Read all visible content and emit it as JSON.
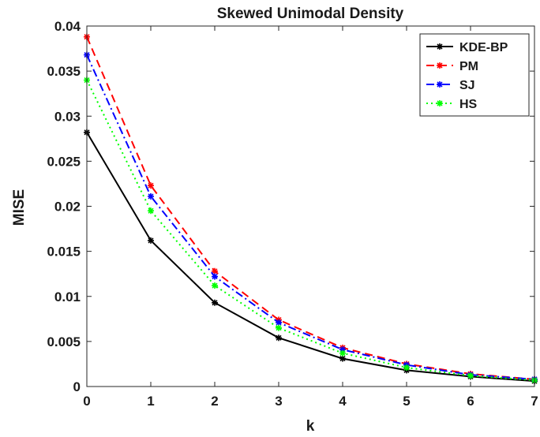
{
  "chart_data": {
    "type": "line",
    "title": "Skewed Unimodal Density",
    "xlabel": "k",
    "ylabel": "MISE",
    "xlim": [
      0,
      7
    ],
    "ylim": [
      0,
      0.04
    ],
    "x": [
      0,
      1,
      2,
      3,
      4,
      5,
      6,
      7
    ],
    "x_ticks": [
      "0",
      "1",
      "2",
      "3",
      "4",
      "5",
      "6",
      "7"
    ],
    "y_ticks": [
      {
        "value": 0,
        "label": "0"
      },
      {
        "value": 0.005,
        "label": "0.005"
      },
      {
        "value": 0.01,
        "label": "0.01"
      },
      {
        "value": 0.015,
        "label": "0.015"
      },
      {
        "value": 0.02,
        "label": "0.02"
      },
      {
        "value": 0.025,
        "label": "0.025"
      },
      {
        "value": 0.03,
        "label": "0.03"
      },
      {
        "value": 0.035,
        "label": "0.035"
      },
      {
        "value": 0.04,
        "label": "0.04"
      }
    ],
    "grid": false,
    "legend_position": "top-right",
    "series": [
      {
        "name": "KDE-BP",
        "color": "#000000",
        "dash": "solid",
        "values": [
          0.0282,
          0.0162,
          0.0093,
          0.0054,
          0.0031,
          0.0018,
          0.0011,
          0.0006
        ]
      },
      {
        "name": "PM",
        "color": "#ff0000",
        "dash": "dashed",
        "values": [
          0.0388,
          0.0223,
          0.0128,
          0.0074,
          0.0043,
          0.0025,
          0.0014,
          0.0008
        ]
      },
      {
        "name": "SJ",
        "color": "#0000ff",
        "dash": "dashdot",
        "values": [
          0.0368,
          0.0211,
          0.0122,
          0.0071,
          0.0041,
          0.0024,
          0.0013,
          0.0008
        ]
      },
      {
        "name": "HS",
        "color": "#00ff00",
        "dash": "dotted",
        "values": [
          0.034,
          0.0195,
          0.0112,
          0.0065,
          0.0037,
          0.0021,
          0.0012,
          0.0007
        ]
      }
    ]
  }
}
